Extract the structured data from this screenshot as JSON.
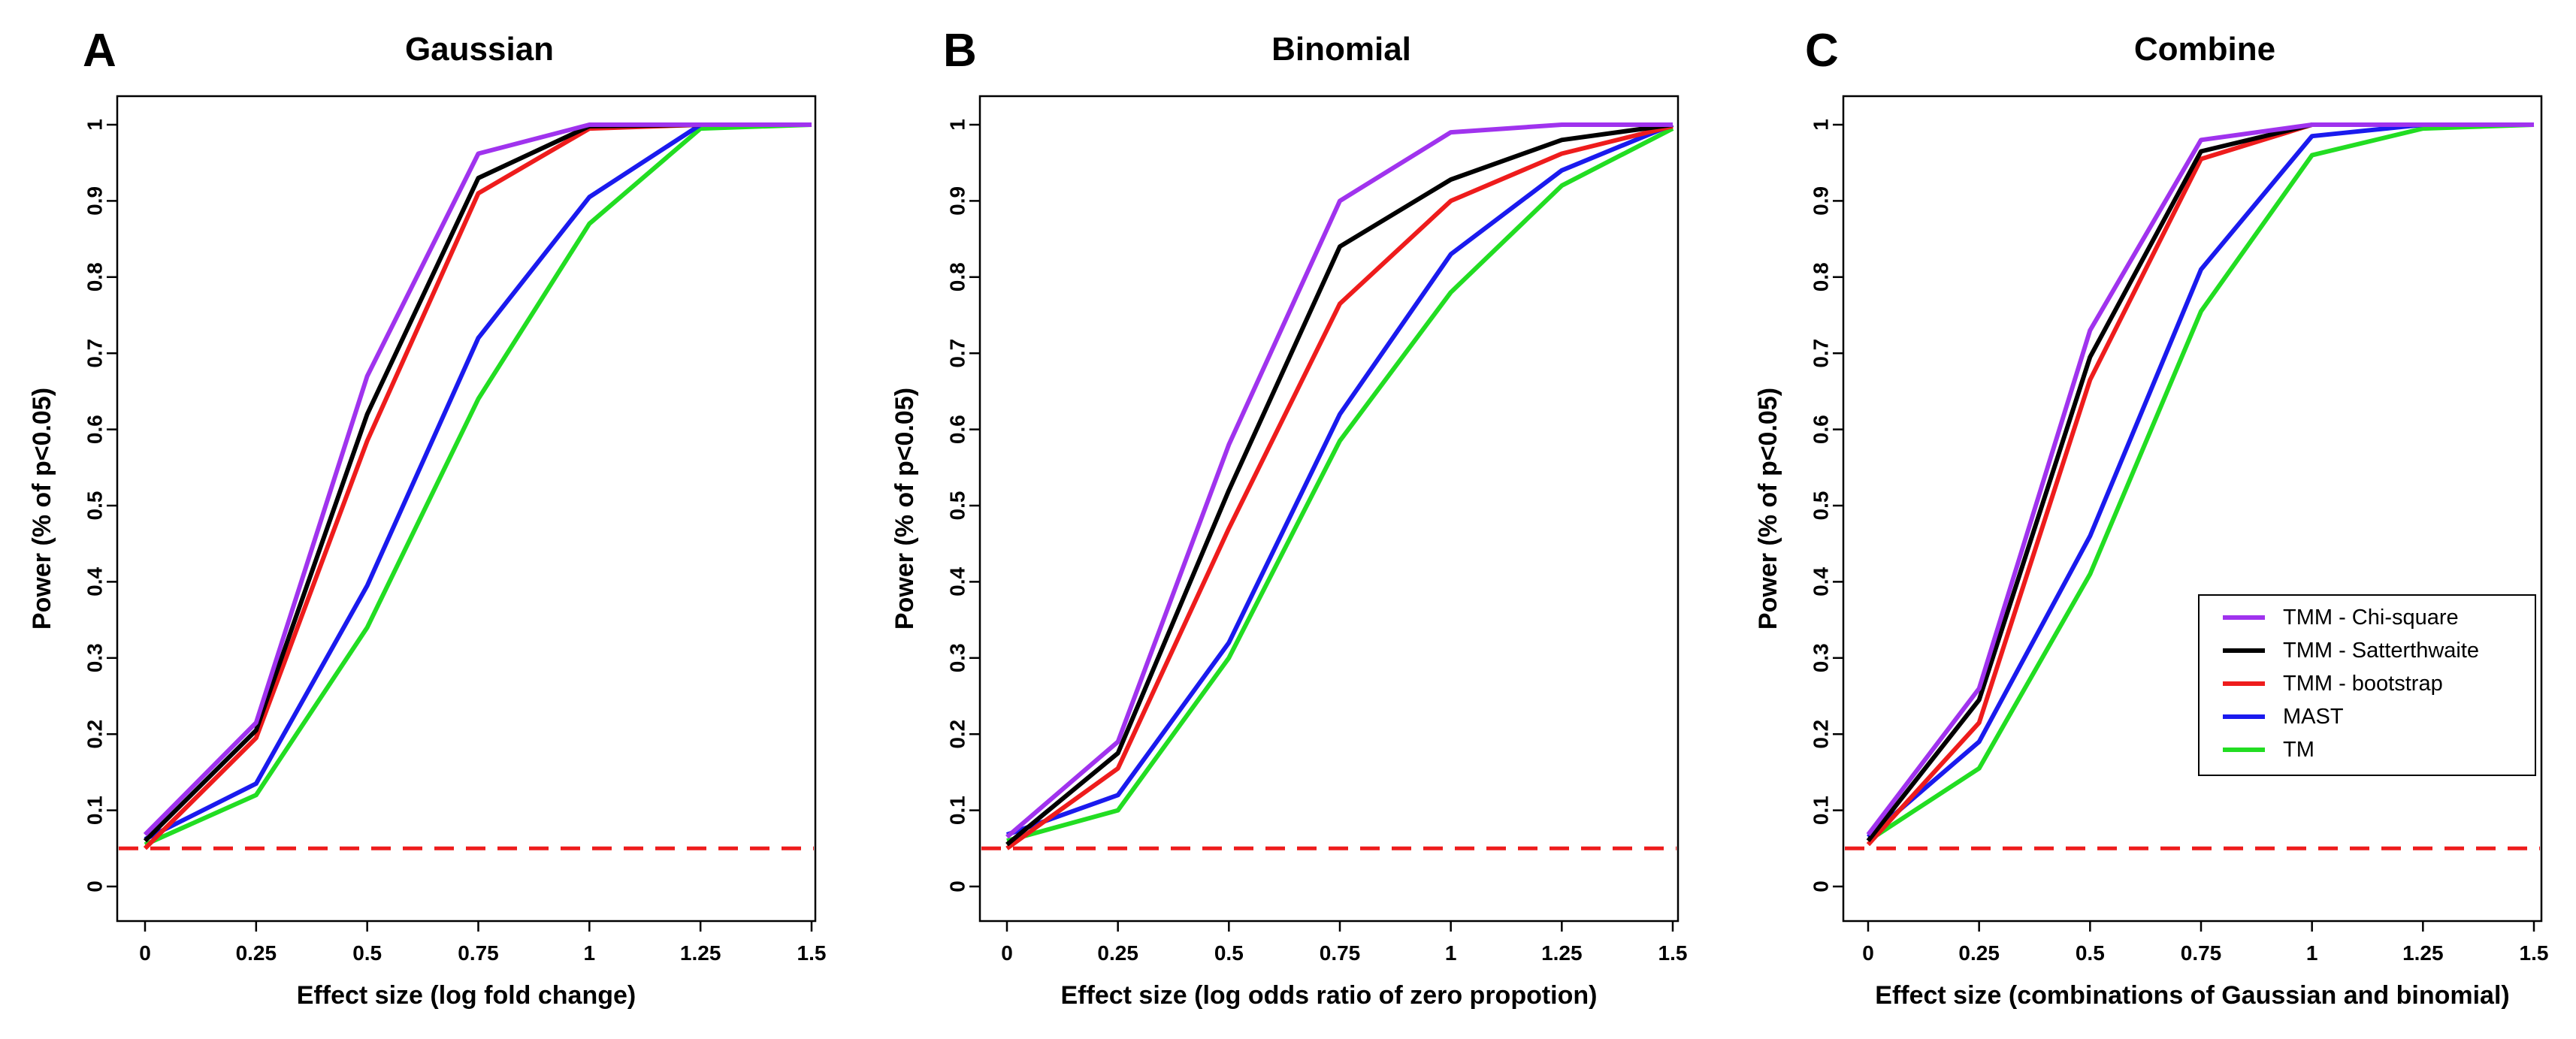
{
  "chart_data": [
    {
      "type": "line",
      "panel_label": "A",
      "title": "Gaussian",
      "xlabel": "Effect size (log fold change)",
      "ylabel": "Power (% of p<0.05)",
      "xlim": [
        0,
        1.5
      ],
      "ylim": [
        0,
        1
      ],
      "x": [
        0,
        0.25,
        0.5,
        0.75,
        1,
        1.25,
        1.5
      ],
      "x_tick_labels": [
        "0",
        "0.25",
        "0.5",
        "0.75",
        "1",
        "1.25",
        "1.5"
      ],
      "y_ticks": [
        0,
        0.1,
        0.2,
        0.3,
        0.4,
        0.5,
        0.6,
        0.7,
        0.8,
        0.9,
        1
      ],
      "y_tick_labels": [
        "0",
        "0.1",
        "0.2",
        "0.3",
        "0.4",
        "0.5",
        "0.6",
        "0.7",
        "0.8",
        "0.9",
        "1"
      ],
      "reference_line": {
        "y": 0.05,
        "color": "#ee1c1c",
        "style": "dashed"
      },
      "series": [
        {
          "name": "TM",
          "color": "#22dd22",
          "values": [
            0.055,
            0.12,
            0.34,
            0.64,
            0.87,
            0.995,
            1.0
          ]
        },
        {
          "name": "MAST",
          "color": "#1a1aee",
          "values": [
            0.062,
            0.135,
            0.395,
            0.72,
            0.905,
            1.0,
            1.0
          ]
        },
        {
          "name": "TMM - bootstrap",
          "color": "#ee1c1c",
          "values": [
            0.05,
            0.195,
            0.585,
            0.91,
            0.995,
            1.0,
            1.0
          ]
        },
        {
          "name": "TMM - Satterthwaite",
          "color": "#000000",
          "values": [
            0.06,
            0.205,
            0.62,
            0.93,
            0.998,
            1.0,
            1.0
          ]
        },
        {
          "name": "TMM - Chi-square",
          "color": "#a033ee",
          "values": [
            0.068,
            0.215,
            0.67,
            0.962,
            1.0,
            1.0,
            1.0
          ]
        }
      ]
    },
    {
      "type": "line",
      "panel_label": "B",
      "title": "Binomial",
      "xlabel": "Effect size (log odds ratio of zero propotion)",
      "ylabel": "Power (% of p<0.05)",
      "xlim": [
        0,
        1.5
      ],
      "ylim": [
        0,
        1
      ],
      "x": [
        0,
        0.25,
        0.5,
        0.75,
        1,
        1.25,
        1.5
      ],
      "x_tick_labels": [
        "0",
        "0.25",
        "0.5",
        "0.75",
        "1",
        "1.25",
        "1.5"
      ],
      "y_ticks": [
        0,
        0.1,
        0.2,
        0.3,
        0.4,
        0.5,
        0.6,
        0.7,
        0.8,
        0.9,
        1
      ],
      "y_tick_labels": [
        "0",
        "0.1",
        "0.2",
        "0.3",
        "0.4",
        "0.5",
        "0.6",
        "0.7",
        "0.8",
        "0.9",
        "1"
      ],
      "reference_line": {
        "y": 0.05,
        "color": "#ee1c1c",
        "style": "dashed"
      },
      "series": [
        {
          "name": "TM",
          "color": "#22dd22",
          "values": [
            0.06,
            0.1,
            0.3,
            0.585,
            0.78,
            0.92,
            0.995
          ]
        },
        {
          "name": "MAST",
          "color": "#1a1aee",
          "values": [
            0.068,
            0.12,
            0.32,
            0.62,
            0.83,
            0.94,
            1.0
          ]
        },
        {
          "name": "TMM - bootstrap",
          "color": "#ee1c1c",
          "values": [
            0.05,
            0.155,
            0.47,
            0.765,
            0.9,
            0.962,
            0.998
          ]
        },
        {
          "name": "TMM - Satterthwaite",
          "color": "#000000",
          "values": [
            0.055,
            0.175,
            0.52,
            0.84,
            0.928,
            0.98,
            1.0
          ]
        },
        {
          "name": "TMM - Chi-square",
          "color": "#a033ee",
          "values": [
            0.065,
            0.19,
            0.58,
            0.9,
            0.99,
            1.0,
            1.0
          ]
        }
      ]
    },
    {
      "type": "line",
      "panel_label": "C",
      "title": "Combine",
      "xlabel": "Effect size (combinations of Gaussian and binomial)",
      "ylabel": "Power (% of p<0.05)",
      "xlim": [
        0,
        1.5
      ],
      "ylim": [
        0,
        1
      ],
      "x": [
        0,
        0.25,
        0.5,
        0.75,
        1,
        1.25,
        1.5
      ],
      "x_tick_labels": [
        "0",
        "0.25",
        "0.5",
        "0.75",
        "1",
        "1.25",
        "1.5"
      ],
      "y_ticks": [
        0,
        0.1,
        0.2,
        0.3,
        0.4,
        0.5,
        0.6,
        0.7,
        0.8,
        0.9,
        1
      ],
      "y_tick_labels": [
        "0",
        "0.1",
        "0.2",
        "0.3",
        "0.4",
        "0.5",
        "0.6",
        "0.7",
        "0.8",
        "0.9",
        "1"
      ],
      "reference_line": {
        "y": 0.05,
        "color": "#ee1c1c",
        "style": "dashed"
      },
      "legend": {
        "position": "right-middle",
        "entries": [
          "TMM - Chi-square",
          "TMM - Satterthwaite",
          "TMM - bootstrap",
          "MAST",
          "TM"
        ]
      },
      "series": [
        {
          "name": "TM",
          "color": "#22dd22",
          "values": [
            0.06,
            0.155,
            0.41,
            0.755,
            0.96,
            0.995,
            1.0
          ]
        },
        {
          "name": "MAST",
          "color": "#1a1aee",
          "values": [
            0.065,
            0.19,
            0.46,
            0.81,
            0.985,
            1.0,
            1.0
          ]
        },
        {
          "name": "TMM - bootstrap",
          "color": "#ee1c1c",
          "values": [
            0.055,
            0.215,
            0.665,
            0.955,
            1.0,
            1.0,
            1.0
          ]
        },
        {
          "name": "TMM - Satterthwaite",
          "color": "#000000",
          "values": [
            0.06,
            0.245,
            0.695,
            0.965,
            1.0,
            1.0,
            1.0
          ]
        },
        {
          "name": "TMM - Chi-square",
          "color": "#a033ee",
          "values": [
            0.068,
            0.26,
            0.73,
            0.98,
            1.0,
            1.0,
            1.0
          ]
        }
      ]
    }
  ]
}
